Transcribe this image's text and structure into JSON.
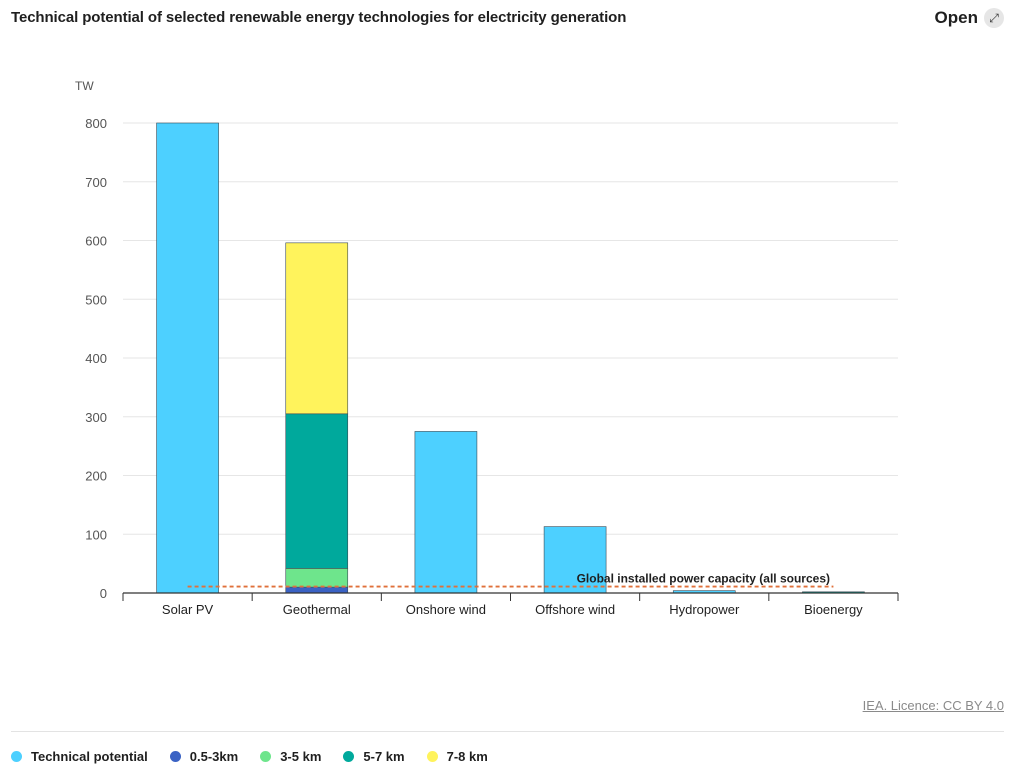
{
  "header": {
    "title": "Technical potential of selected renewable energy technologies for electricity generation",
    "open_label": "Open",
    "open_icon": "expand-arrows-icon"
  },
  "credit": "IEA. Licence: CC BY 4.0",
  "legend": [
    {
      "label": "Technical potential",
      "color": "#4dd0ff"
    },
    {
      "label": "0.5-3km",
      "color": "#3a62c4"
    },
    {
      "label": "3-5 km",
      "color": "#6ee58c"
    },
    {
      "label": "5-7 km",
      "color": "#00a99c"
    },
    {
      "label": "7-8 km",
      "color": "#fff35c"
    }
  ],
  "chart_data": {
    "type": "bar",
    "stacked": true,
    "title": "Technical potential of selected renewable energy technologies for electricity generation",
    "ylabel": "TW",
    "xlabel": "",
    "ylim": [
      0,
      800
    ],
    "yticks": [
      0,
      100,
      200,
      300,
      400,
      500,
      600,
      700,
      800
    ],
    "grid": true,
    "categories": [
      "Solar PV",
      "Geothermal",
      "Onshore wind",
      "Offshore wind",
      "Hydropower",
      "Bioenergy"
    ],
    "series": [
      {
        "name": "Technical potential",
        "color": "#4dd0ff",
        "values": [
          800,
          0,
          275,
          113,
          4,
          0
        ]
      },
      {
        "name": "0.5-3km",
        "color": "#3a62c4",
        "values": [
          0,
          10,
          0,
          0,
          0,
          0
        ]
      },
      {
        "name": "3-5 km",
        "color": "#6ee58c",
        "values": [
          0,
          32,
          0,
          0,
          0,
          0
        ]
      },
      {
        "name": "5-7 km",
        "color": "#00a99c",
        "values": [
          0,
          263,
          0,
          0,
          0,
          2
        ]
      },
      {
        "name": "7-8 km",
        "color": "#fff35c",
        "values": [
          0,
          291,
          0,
          0,
          0,
          0
        ]
      }
    ],
    "reference_line": {
      "label": "Global installed power capacity (all sources)",
      "value": 11,
      "color": "#e0703a"
    }
  }
}
